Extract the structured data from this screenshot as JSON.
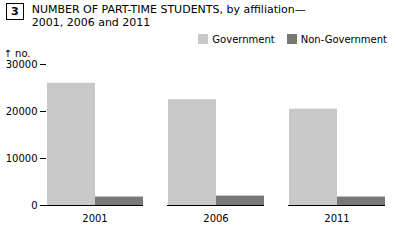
{
  "chart_data": {
    "type": "bar",
    "title": "NUMBER OF PART-TIME STUDENTS, by affiliation—",
    "subtitle": "2001, 2006 and 2011",
    "annotations": [
      "3"
    ],
    "categories": [
      "2001",
      "2006",
      "2011"
    ],
    "series": [
      {
        "name": "Government",
        "color": "#C8C8C8",
        "values": [
          26000,
          22500,
          20500
        ]
      },
      {
        "name": "Non-Government",
        "color": "#787878",
        "values": [
          1800,
          2000,
          1800
        ]
      }
    ],
    "ylabel": "no.",
    "ylim": [
      0,
      30000
    ],
    "yticks": [
      0,
      10000,
      20000,
      30000
    ],
    "grid": false,
    "legend": "upper right"
  }
}
